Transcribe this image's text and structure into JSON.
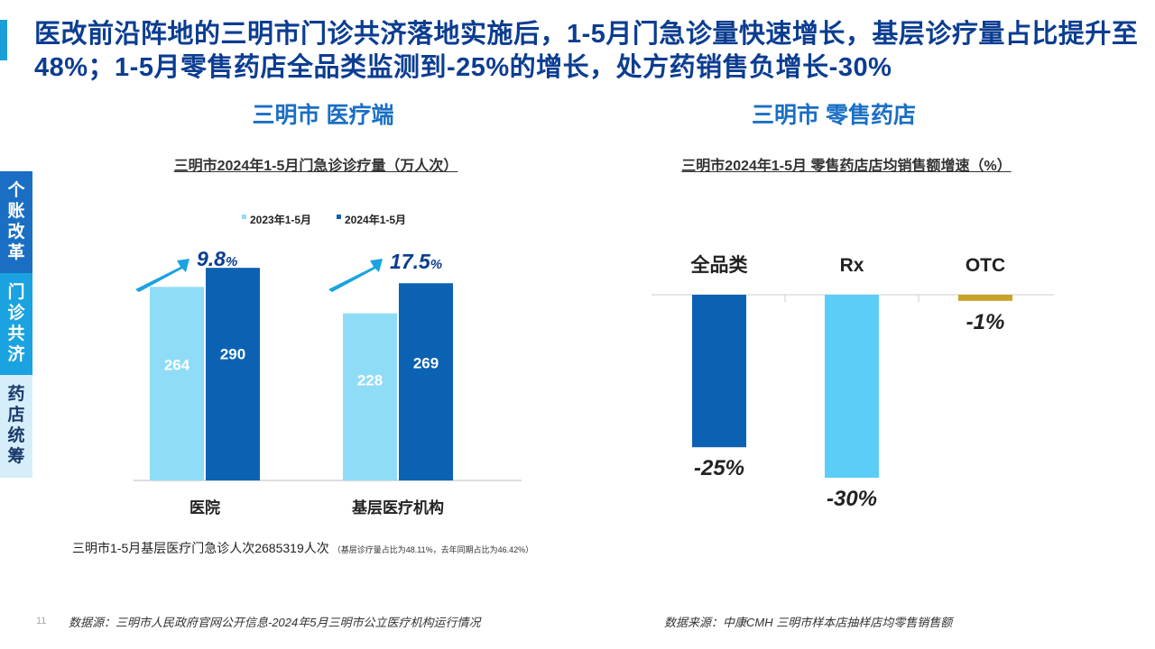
{
  "headline": "医改前沿阵地的三明市门诊共济落地实施后，1-5月门急诊量快速增长，基层诊疗量占比提升至48%；1-5月零售药店全品类监测到-25%的增长，处方药销售负增长-30%",
  "side_tabs": [
    {
      "label": "个账改革",
      "color": "#1a6fc4"
    },
    {
      "label": "门诊共济",
      "color": "#1aa3e0"
    },
    {
      "label": "药店统筹",
      "color": "#d6eefa",
      "text_color": "#1a3a6a"
    }
  ],
  "left": {
    "section_title": "三明市 医疗端",
    "chart_title": "三明市2024年1-5月门急诊诊疗量（万人次）",
    "note_main": "三明市1-5月基层医疗门急诊人次2685319人次",
    "note_small": "（基层诊疗量占比为48.11%，去年同期占比为46.42%）",
    "source": "数据源：三明市人民政府官网公开信息-2024年5月三明市公立医疗机构运行情况"
  },
  "right": {
    "section_title": "三明市 零售药店",
    "chart_title": "三明市2024年1-5月 零售药店店均销售额增速（%）",
    "source": "数据来源：中康CMH 三明市样本店抽样店均零售销售额"
  },
  "page_number": "11",
  "chart_data": [
    {
      "type": "bar",
      "title": "三明市2024年1-5月门急诊诊疗量（万人次）",
      "categories": [
        "医院",
        "基层医疗机构"
      ],
      "series": [
        {
          "name": "2023年1-5月",
          "values": [
            264,
            228
          ],
          "color": "#8fdcf7",
          "label_color": "#ffffff"
        },
        {
          "name": "2024年1-5月",
          "values": [
            290,
            269
          ],
          "color": "#0b62b3",
          "label_color": "#ffffff"
        }
      ],
      "growth_labels": [
        {
          "value": "9.8",
          "unit": "%"
        },
        {
          "value": "17.5",
          "unit": "%"
        }
      ],
      "ylim": [
        0,
        300
      ],
      "legend": "top",
      "grid": false
    },
    {
      "type": "bar",
      "title": "三明市2024年1-5月 零售药店店均销售额增速（%）",
      "categories": [
        "全品类",
        "Rx",
        "OTC"
      ],
      "values": [
        -25,
        -30,
        -1
      ],
      "value_labels": [
        "-25%",
        "-30%",
        "-1%"
      ],
      "colors": [
        "#0b62b3",
        "#5ccdf7",
        "#c9a227"
      ],
      "ylim": [
        -30,
        0
      ],
      "grid": false
    }
  ]
}
